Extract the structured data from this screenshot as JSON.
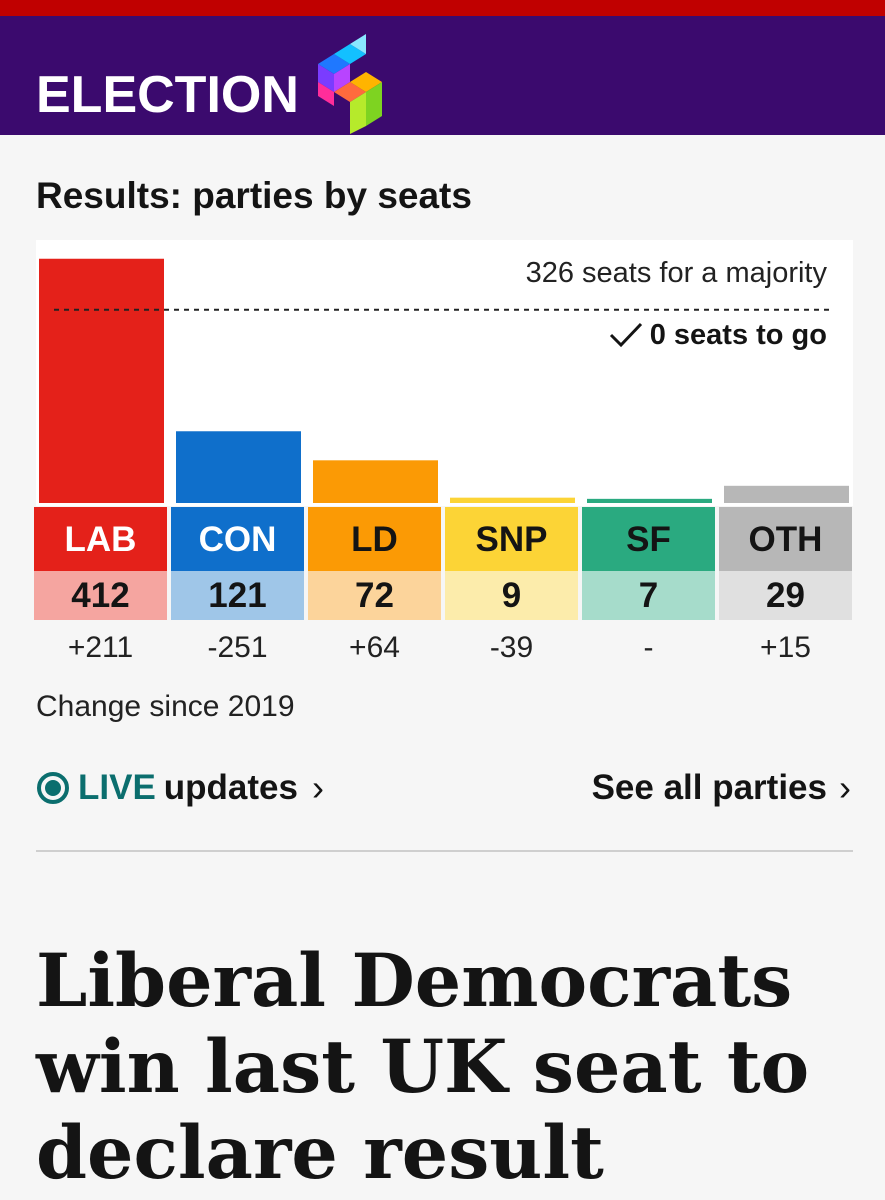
{
  "header": {
    "title": "ELECTION",
    "logo_icon": "election-24-logo",
    "bar_color": "#3b0a6e",
    "strip_color": "#c00000"
  },
  "results": {
    "title": "Results: parties by seats",
    "majority_label": "326 seats for a majority",
    "seats_to_go": "0 seats to go",
    "change_caption": "Change since 2019"
  },
  "parties": [
    {
      "abbr": "LAB",
      "seats": "412",
      "change": "+211",
      "color": "#e4211a",
      "light": "#f5a5a0",
      "text_color": "#ffffff"
    },
    {
      "abbr": "CON",
      "seats": "121",
      "change": "-251",
      "color": "#0f6fcb",
      "light": "#9fc6e8",
      "text_color": "#ffffff"
    },
    {
      "abbr": "LD",
      "seats": "72",
      "change": "+64",
      "color": "#fb9a05",
      "light": "#fcd49b",
      "text_color": "#141414"
    },
    {
      "abbr": "SNP",
      "seats": "9",
      "change": "-39",
      "color": "#fcd436",
      "light": "#fcecab",
      "text_color": "#141414"
    },
    {
      "abbr": "SF",
      "seats": "7",
      "change": "-",
      "color": "#2aaa80",
      "light": "#a6dccb",
      "text_color": "#141414"
    },
    {
      "abbr": "OTH",
      "seats": "29",
      "change": "+15",
      "color": "#b7b7b7",
      "light": "#e0e0e0",
      "text_color": "#141414"
    }
  ],
  "chart_data": {
    "type": "bar",
    "categories": [
      "LAB",
      "CON",
      "LD",
      "SNP",
      "SF",
      "OTH"
    ],
    "values": [
      412,
      121,
      72,
      9,
      7,
      29
    ],
    "colors": [
      "#e4211a",
      "#0f6fcb",
      "#fb9a05",
      "#fcd436",
      "#2aaa80",
      "#b7b7b7"
    ],
    "reference_line": {
      "value": 326,
      "label": "326 seats for a majority",
      "style": "dotted"
    },
    "ylim": [
      0,
      420
    ],
    "grid": false,
    "legend": "none"
  },
  "links": {
    "live_word": "LIVE",
    "updates_word": "updates",
    "see_all": "See all parties",
    "live_icon": "live-dot-icon",
    "chevron_icon": "chevron-right-icon",
    "live_color": "#0b6e6e"
  },
  "headline": "Liberal Democrats win last UK seat to declare result"
}
